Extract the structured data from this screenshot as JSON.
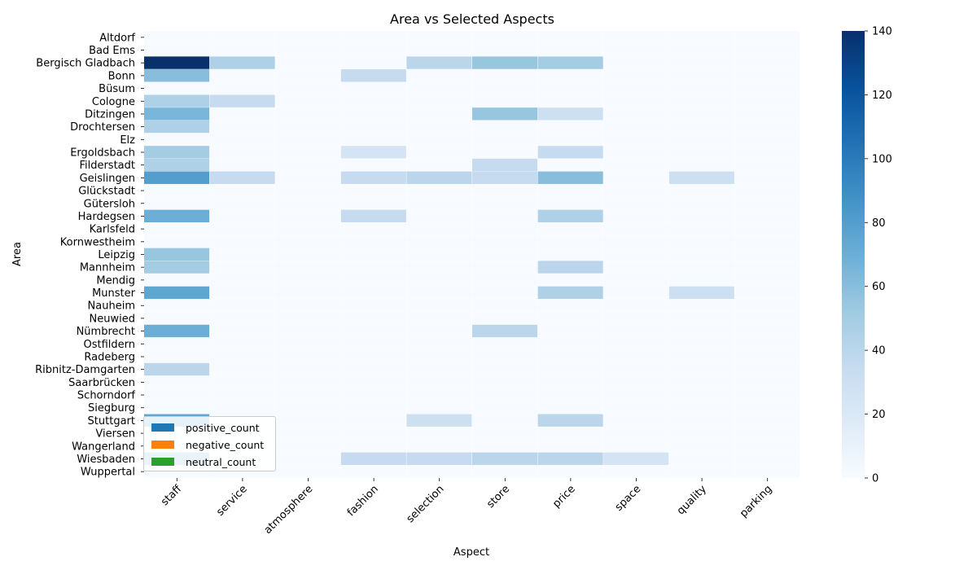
{
  "chart_data": {
    "type": "heatmap",
    "title": "Area vs Selected Aspects",
    "xlabel": "Aspect",
    "ylabel": "Area",
    "columns": [
      "staff",
      "service",
      "atmosphere",
      "fashion",
      "selection",
      "store",
      "price",
      "space",
      "quality",
      "parking"
    ],
    "row_tick_labels": [
      "Altdorf",
      "Bad Ems",
      "Bergisch Gladbach",
      "Bonn",
      "Büsum",
      "Cologne",
      "Ditzingen",
      "Drochtersen",
      "Elz",
      "Ergoldsbach",
      "Filderstadt",
      "Geislingen",
      "Glückstadt",
      "Gütersloh",
      "Hardegsen",
      "Karlsfeld",
      "Kornwestheim",
      "Leipzig",
      "Mannheim",
      "Mendig",
      "Munster",
      "Nauheim",
      "Neuwied",
      "Nümbrecht",
      "Ostfildern",
      "Radeberg",
      "Ribnitz-Damgarten",
      "Saarbrücken",
      "Schorndorf",
      "Siegburg",
      "Stuttgart",
      "Viersen",
      "Wangerland",
      "Wiesbaden",
      "Wuppertal"
    ],
    "colorbar": {
      "min": 0,
      "max": 140,
      "ticks": [
        0,
        20,
        40,
        60,
        80,
        100,
        120,
        140
      ],
      "colormap": "Blues"
    },
    "legend": {
      "position": "lower-left",
      "entries": [
        {
          "label": "positive_count",
          "color": "#1f77b4"
        },
        {
          "label": "negative_count",
          "color": "#ff7f0e"
        },
        {
          "label": "neutral_count",
          "color": "#2ca02c"
        }
      ]
    },
    "highlight_cells": [
      {
        "row": "Bergisch Gladbach",
        "column": "staff",
        "value": 140
      },
      {
        "row": "Bergisch Gladbach",
        "column": "service",
        "value": 45
      },
      {
        "row": "Bergisch Gladbach",
        "column": "selection",
        "value": 40
      },
      {
        "row": "Bergisch Gladbach",
        "column": "store",
        "value": 55
      },
      {
        "row": "Bergisch Gladbach",
        "column": "price",
        "value": 50
      },
      {
        "row": "Bonn",
        "column": "staff",
        "value": 60
      },
      {
        "row": "Bonn",
        "column": "fashion",
        "value": 35
      },
      {
        "row": "Cologne",
        "column": "staff",
        "value": 45
      },
      {
        "row": "Cologne",
        "column": "service",
        "value": 35
      },
      {
        "row": "Ditzingen",
        "column": "staff",
        "value": 65
      },
      {
        "row": "Ditzingen",
        "column": "store",
        "value": 55
      },
      {
        "row": "Ditzingen",
        "column": "price",
        "value": 30
      },
      {
        "row": "Drochtersen",
        "column": "staff",
        "value": 45
      },
      {
        "row": "Ergoldsbach",
        "column": "staff",
        "value": 50
      },
      {
        "row": "Ergoldsbach",
        "column": "fashion",
        "value": 25
      },
      {
        "row": "Ergoldsbach",
        "column": "price",
        "value": 35
      },
      {
        "row": "Filderstadt",
        "column": "staff",
        "value": 45
      },
      {
        "row": "Filderstadt",
        "column": "store",
        "value": 35
      },
      {
        "row": "Geislingen",
        "column": "staff",
        "value": 80
      },
      {
        "row": "Geislingen",
        "column": "service",
        "value": 35
      },
      {
        "row": "Geislingen",
        "column": "fashion",
        "value": 35
      },
      {
        "row": "Geislingen",
        "column": "selection",
        "value": 40
      },
      {
        "row": "Geislingen",
        "column": "store",
        "value": 35
      },
      {
        "row": "Geislingen",
        "column": "price",
        "value": 60
      },
      {
        "row": "Geislingen",
        "column": "quality",
        "value": 30
      },
      {
        "row": "Hardegsen",
        "column": "staff",
        "value": 70
      },
      {
        "row": "Hardegsen",
        "column": "fashion",
        "value": 35
      },
      {
        "row": "Hardegsen",
        "column": "price",
        "value": 45
      },
      {
        "row": "Leipzig",
        "column": "staff",
        "value": 55
      },
      {
        "row": "Mannheim",
        "column": "staff",
        "value": 50
      },
      {
        "row": "Mannheim",
        "column": "price",
        "value": 40
      },
      {
        "row": "Munster",
        "column": "staff",
        "value": 75
      },
      {
        "row": "Munster",
        "column": "price",
        "value": 45
      },
      {
        "row": "Munster",
        "column": "quality",
        "value": 30
      },
      {
        "row": "Nümbrecht",
        "column": "staff",
        "value": 70
      },
      {
        "row": "Nümbrecht",
        "column": "store",
        "value": 40
      },
      {
        "row": "Ribnitz-Damgarten",
        "column": "staff",
        "value": 40
      },
      {
        "row": "Stuttgart",
        "column": "staff",
        "value": 75
      },
      {
        "row": "Stuttgart",
        "column": "selection",
        "value": 30
      },
      {
        "row": "Stuttgart",
        "column": "price",
        "value": 40
      },
      {
        "row": "Wiesbaden",
        "column": "staff",
        "value": 70
      },
      {
        "row": "Wiesbaden",
        "column": "fashion",
        "value": 35
      },
      {
        "row": "Wiesbaden",
        "column": "selection",
        "value": 35
      },
      {
        "row": "Wiesbaden",
        "column": "store",
        "value": 40
      },
      {
        "row": "Wiesbaden",
        "column": "price",
        "value": 40
      },
      {
        "row": "Wiesbaden",
        "column": "space",
        "value": 25
      }
    ],
    "grid": false
  }
}
